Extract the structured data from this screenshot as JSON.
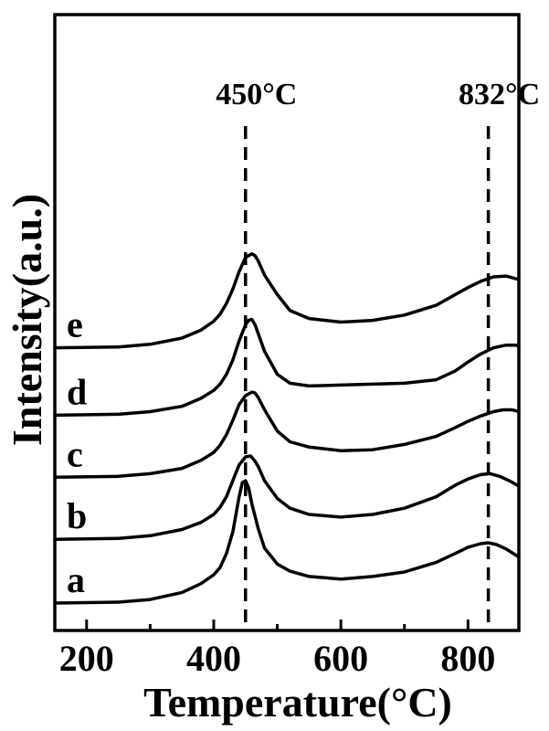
{
  "chart_data": {
    "type": "line",
    "xlabel": "Temperature(°C)",
    "ylabel": "Intensity(a.u.)",
    "xlim": [
      150,
      880
    ],
    "xticks": [
      200,
      400,
      600,
      800
    ],
    "yticks_shown": false,
    "reference_lines": [
      {
        "x": 450,
        "label": "450°C"
      },
      {
        "x": 832,
        "label": "832°C"
      }
    ],
    "series": [
      {
        "name": "a",
        "baseline": 0,
        "x": [
          150,
          250,
          300,
          350,
          380,
          400,
          410,
          420,
          430,
          440,
          445,
          450,
          455,
          460,
          470,
          480,
          500,
          520,
          550,
          600,
          650,
          700,
          750,
          780,
          800,
          820,
          832,
          845,
          860,
          880
        ],
        "y": [
          0,
          0.05,
          0.2,
          0.6,
          1.1,
          1.6,
          2.0,
          2.8,
          4.0,
          6.0,
          6.8,
          6.9,
          6.5,
          5.6,
          4.2,
          3.1,
          2.2,
          1.8,
          1.5,
          1.35,
          1.5,
          1.75,
          2.3,
          2.8,
          3.15,
          3.35,
          3.4,
          3.3,
          3.05,
          2.6
        ]
      },
      {
        "name": "b",
        "baseline": 3.6,
        "x": [
          150,
          250,
          300,
          350,
          380,
          400,
          410,
          420,
          430,
          440,
          450,
          458,
          465,
          470,
          480,
          500,
          520,
          550,
          600,
          650,
          700,
          750,
          780,
          800,
          820,
          835,
          850,
          865,
          880
        ],
        "y": [
          0,
          0.05,
          0.2,
          0.55,
          0.95,
          1.4,
          1.8,
          2.4,
          3.3,
          4.2,
          4.65,
          4.7,
          4.4,
          4.1,
          3.3,
          2.3,
          1.75,
          1.4,
          1.25,
          1.4,
          1.75,
          2.4,
          3.05,
          3.4,
          3.65,
          3.7,
          3.55,
          3.3,
          3.0
        ]
      },
      {
        "name": "c",
        "baseline": 7.1,
        "x": [
          150,
          250,
          300,
          350,
          380,
          400,
          410,
          420,
          430,
          440,
          450,
          460,
          465,
          470,
          480,
          500,
          520,
          550,
          600,
          650,
          700,
          750,
          780,
          800,
          820,
          840,
          855,
          870,
          880
        ],
        "y": [
          0,
          0.05,
          0.2,
          0.5,
          0.95,
          1.4,
          1.8,
          2.4,
          3.2,
          4.1,
          4.6,
          4.8,
          4.75,
          4.5,
          3.8,
          2.6,
          2.0,
          1.7,
          1.5,
          1.55,
          1.85,
          2.3,
          2.8,
          3.15,
          3.45,
          3.7,
          3.8,
          3.8,
          3.7
        ]
      },
      {
        "name": "d",
        "baseline": 10.6,
        "x": [
          150,
          250,
          300,
          350,
          380,
          400,
          410,
          420,
          430,
          440,
          450,
          455,
          460,
          465,
          470,
          480,
          500,
          520,
          550,
          600,
          650,
          700,
          750,
          780,
          800,
          820,
          840,
          860,
          875,
          880
        ],
        "y": [
          0,
          0.05,
          0.2,
          0.5,
          0.95,
          1.4,
          1.75,
          2.3,
          3.1,
          4.2,
          5.1,
          5.35,
          5.4,
          5.1,
          4.6,
          3.6,
          2.3,
          1.8,
          1.65,
          1.7,
          1.75,
          1.8,
          2.0,
          2.5,
          3.0,
          3.45,
          3.8,
          3.95,
          3.95,
          3.9
        ]
      },
      {
        "name": "e",
        "baseline": 14.4,
        "x": [
          150,
          250,
          300,
          350,
          380,
          400,
          410,
          420,
          430,
          440,
          450,
          460,
          465,
          470,
          480,
          500,
          520,
          550,
          600,
          650,
          700,
          750,
          780,
          800,
          820,
          840,
          860,
          875,
          880
        ],
        "y": [
          0,
          0.05,
          0.2,
          0.55,
          1.0,
          1.5,
          1.9,
          2.5,
          3.3,
          4.3,
          5.1,
          5.3,
          5.2,
          4.9,
          4.1,
          3.0,
          2.1,
          1.65,
          1.45,
          1.55,
          1.85,
          2.4,
          3.0,
          3.4,
          3.75,
          4.0,
          4.05,
          3.9,
          3.85
        ]
      }
    ]
  }
}
